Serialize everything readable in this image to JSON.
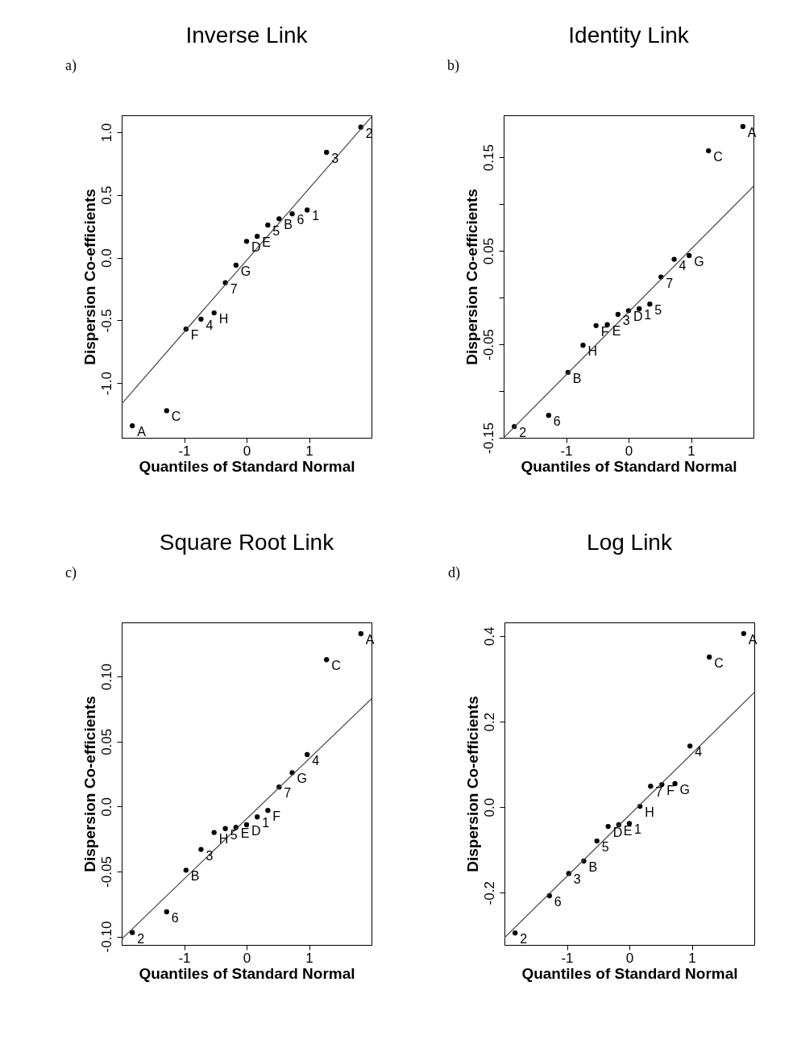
{
  "chart_data": [
    {
      "type": "scatter",
      "title": "Inverse Link",
      "xlabel": "Quantiles of Standard Normal",
      "ylabel": "Dispersion Co-efficients",
      "marker": "circle",
      "xlim": [
        -2.0,
        2.0
      ],
      "ylim": [
        -1.436,
        1.135
      ],
      "xticks": [
        -1,
        0,
        1
      ],
      "yticks": [
        {
          "value": -1,
          "label": "-1.0"
        },
        -0.5,
        {
          "value": 0,
          "label": "0.0"
        },
        0.5,
        {
          "value": 1,
          "label": "1.0"
        }
      ],
      "series": [
        {
          "type": "scatter",
          "color": "#000000",
          "x": [
            -1.83,
            -1.28,
            -0.97,
            -0.73,
            -0.52,
            -0.34,
            -0.17,
            0,
            0.17,
            0.34,
            0.52,
            0.73,
            0.97,
            1.28,
            1.83
          ],
          "values": [
            -1.34,
            -1.22,
            -0.57,
            -0.49,
            -0.44,
            -0.2,
            -0.06,
            0.13,
            0.17,
            0.26,
            0.31,
            0.35,
            0.38,
            0.84,
            1.04
          ]
        },
        {
          "type": "line",
          "marker": "none",
          "color": "#444444",
          "x": [
            -2.0,
            2.0
          ],
          "values": [
            -1.165,
            1.123
          ]
        }
      ],
      "annotations": [
        "a)",
        {
          "text": "A",
          "x": -1.83,
          "y": -1.34
        },
        {
          "text": "C",
          "x": -1.28,
          "y": -1.22
        },
        {
          "text": "F",
          "x": -0.97,
          "y": -0.57
        },
        {
          "text": "4",
          "x": -0.73,
          "y": -0.49
        },
        {
          "text": "H",
          "x": -0.52,
          "y": -0.44
        },
        {
          "text": "7",
          "x": -0.34,
          "y": -0.2
        },
        {
          "text": "G",
          "x": -0.17,
          "y": -0.06
        },
        {
          "text": "D",
          "x": 0,
          "y": 0.13
        },
        {
          "text": "E",
          "x": 0.17,
          "y": 0.17
        },
        {
          "text": "5",
          "x": 0.34,
          "y": 0.26
        },
        {
          "text": "B",
          "x": 0.52,
          "y": 0.31
        },
        {
          "text": "6",
          "x": 0.73,
          "y": 0.35
        },
        {
          "text": "1",
          "x": 0.97,
          "y": 0.38
        },
        {
          "text": "3",
          "x": 1.28,
          "y": 0.84
        },
        {
          "text": "2",
          "x": 1.83,
          "y": 1.04
        }
      ]
    },
    {
      "type": "scatter",
      "title": "Identity Link",
      "xlabel": "Quantiles of Standard Normal",
      "ylabel": "Dispersion Co-efficients",
      "marker": "circle",
      "xlim": [
        -2.0,
        2.0
      ],
      "ylim": [
        -0.15,
        0.195
      ],
      "xticks": [
        -1,
        0,
        1
      ],
      "yticks": [
        -0.15,
        {
          "value": -0.1,
          "label": null
        },
        -0.05,
        {
          "value": 0,
          "label": null
        },
        0.05,
        {
          "value": 0.1,
          "label": null
        },
        0.15
      ],
      "series": [
        {
          "type": "scatter",
          "color": "#000000",
          "x": [
            -1.83,
            -1.28,
            -0.97,
            -0.73,
            -0.52,
            -0.34,
            -0.17,
            0,
            0.17,
            0.34,
            0.52,
            0.73,
            0.97,
            1.28,
            1.83
          ],
          "values": [
            -0.138,
            -0.126,
            -0.08,
            -0.051,
            -0.03,
            -0.029,
            -0.018,
            -0.014,
            -0.012,
            -0.007,
            0.022,
            0.041,
            0.045,
            0.157,
            0.183
          ]
        },
        {
          "type": "line",
          "marker": "none",
          "color": "#444444",
          "x": [
            -2.0,
            2.0
          ],
          "values": [
            -0.15,
            0.119
          ]
        }
      ],
      "annotations": [
        "b)",
        {
          "text": "2",
          "x": -1.83,
          "y": -0.138
        },
        {
          "text": "6",
          "x": -1.28,
          "y": -0.126
        },
        {
          "text": "B",
          "x": -0.97,
          "y": -0.08
        },
        {
          "text": "H",
          "x": -0.73,
          "y": -0.051
        },
        {
          "text": "F",
          "x": -0.52,
          "y": -0.03
        },
        {
          "text": "E",
          "x": -0.34,
          "y": -0.029
        },
        {
          "text": "3",
          "x": -0.17,
          "y": -0.018
        },
        {
          "text": "D",
          "x": 0,
          "y": -0.014
        },
        {
          "text": "1",
          "x": 0.17,
          "y": -0.012
        },
        {
          "text": "5",
          "x": 0.34,
          "y": -0.007
        },
        {
          "text": "7",
          "x": 0.52,
          "y": 0.022
        },
        {
          "text": "4",
          "x": 0.73,
          "y": 0.041
        },
        {
          "text": "G",
          "x": 0.97,
          "y": 0.045
        },
        {
          "text": "C",
          "x": 1.28,
          "y": 0.157
        },
        {
          "text": "A",
          "x": 1.83,
          "y": 0.183
        }
      ]
    },
    {
      "type": "scatter",
      "title": "Square Root Link",
      "xlabel": "Quantiles of Standard Normal",
      "ylabel": "Dispersion Co-efficients",
      "marker": "circle",
      "xlim": [
        -2.0,
        2.0
      ],
      "ylim": [
        -0.1065,
        0.1417
      ],
      "xticks": [
        -1,
        0,
        1
      ],
      "yticks": [
        {
          "value": -0.1,
          "label": "-0.10"
        },
        -0.05,
        {
          "value": 0,
          "label": "0.0"
        },
        0.05,
        {
          "value": 0.1,
          "label": "0.10"
        }
      ],
      "series": [
        {
          "type": "scatter",
          "color": "#000000",
          "x": [
            -1.83,
            -1.28,
            -0.97,
            -0.73,
            -0.52,
            -0.34,
            -0.17,
            0,
            0.17,
            0.34,
            0.52,
            0.73,
            0.97,
            1.28,
            1.83
          ],
          "values": [
            -0.097,
            -0.081,
            -0.049,
            -0.033,
            -0.02,
            -0.017,
            -0.016,
            -0.014,
            -0.008,
            -0.003,
            0.015,
            0.026,
            0.04,
            0.113,
            0.133
          ]
        },
        {
          "type": "line",
          "marker": "none",
          "color": "#444444",
          "x": [
            -2.0,
            2.0
          ],
          "values": [
            -0.102,
            0.083
          ]
        }
      ],
      "annotations": [
        "c)",
        {
          "text": "2",
          "x": -1.83,
          "y": -0.097
        },
        {
          "text": "6",
          "x": -1.28,
          "y": -0.081
        },
        {
          "text": "B",
          "x": -0.97,
          "y": -0.049
        },
        {
          "text": "3",
          "x": -0.73,
          "y": -0.033
        },
        {
          "text": "H",
          "x": -0.52,
          "y": -0.02
        },
        {
          "text": "5",
          "x": -0.34,
          "y": -0.017
        },
        {
          "text": "E",
          "x": -0.17,
          "y": -0.016
        },
        {
          "text": "D",
          "x": 0,
          "y": -0.014
        },
        {
          "text": "1",
          "x": 0.17,
          "y": -0.008
        },
        {
          "text": "F",
          "x": 0.34,
          "y": -0.003
        },
        {
          "text": "7",
          "x": 0.52,
          "y": 0.015
        },
        {
          "text": "G",
          "x": 0.73,
          "y": 0.026
        },
        {
          "text": "4",
          "x": 0.97,
          "y": 0.04
        },
        {
          "text": "C",
          "x": 1.28,
          "y": 0.113
        },
        {
          "text": "A",
          "x": 1.83,
          "y": 0.133
        }
      ]
    },
    {
      "type": "scatter",
      "title": "Log Link",
      "xlabel": "Quantiles of Standard Normal",
      "ylabel": "Dispersion Co-efficients",
      "marker": "circle",
      "xlim": [
        -2.0,
        2.0
      ],
      "ylim": [
        -0.322,
        0.432
      ],
      "xticks": [
        -1,
        0,
        1
      ],
      "yticks": [
        -0.2,
        {
          "value": 0,
          "label": "0.0"
        },
        0.2,
        0.4
      ],
      "series": [
        {
          "type": "scatter",
          "color": "#000000",
          "x": [
            -1.83,
            -1.28,
            -0.97,
            -0.73,
            -0.52,
            -0.34,
            -0.17,
            0,
            0.17,
            0.34,
            0.52,
            0.73,
            0.97,
            1.28,
            1.83
          ],
          "values": [
            -0.294,
            -0.207,
            -0.155,
            -0.126,
            -0.079,
            -0.045,
            -0.041,
            -0.038,
            0.002,
            0.049,
            0.053,
            0.055,
            0.143,
            0.351,
            0.406
          ]
        },
        {
          "type": "line",
          "marker": "none",
          "color": "#444444",
          "x": [
            -2.0,
            2.0
          ],
          "values": [
            -0.305,
            0.268
          ]
        }
      ],
      "annotations": [
        "d)",
        {
          "text": "2",
          "x": -1.83,
          "y": -0.294
        },
        {
          "text": "6",
          "x": -1.28,
          "y": -0.207
        },
        {
          "text": "3",
          "x": -0.97,
          "y": -0.155
        },
        {
          "text": "B",
          "x": -0.73,
          "y": -0.126
        },
        {
          "text": "5",
          "x": -0.52,
          "y": -0.079
        },
        {
          "text": "D",
          "x": -0.34,
          "y": -0.045
        },
        {
          "text": "E",
          "x": -0.17,
          "y": -0.041
        },
        {
          "text": "1",
          "x": 0,
          "y": -0.038
        },
        {
          "text": "H",
          "x": 0.17,
          "y": 0.002
        },
        {
          "text": "7",
          "x": 0.34,
          "y": 0.049
        },
        {
          "text": "F",
          "x": 0.52,
          "y": 0.053
        },
        {
          "text": "G",
          "x": 0.73,
          "y": 0.055
        },
        {
          "text": "4",
          "x": 0.97,
          "y": 0.143
        },
        {
          "text": "C",
          "x": 1.28,
          "y": 0.351
        },
        {
          "text": "A",
          "x": 1.83,
          "y": 0.406
        }
      ]
    }
  ]
}
